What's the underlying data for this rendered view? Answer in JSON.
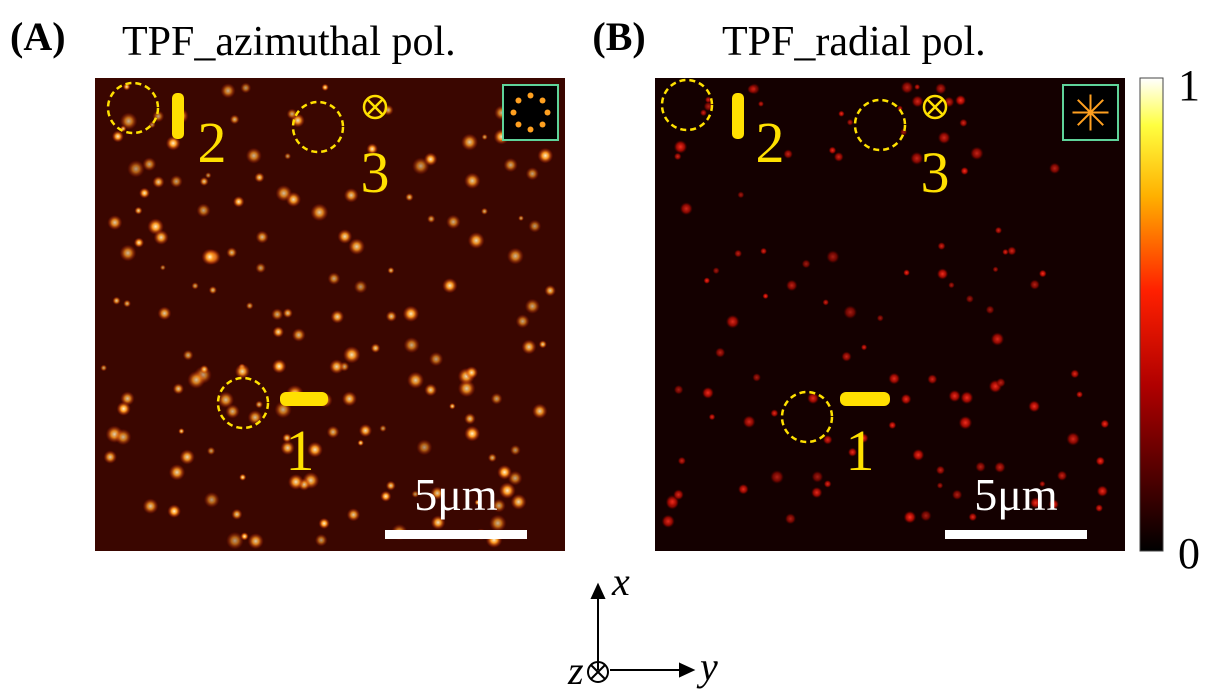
{
  "panels": [
    {
      "label": "(A)",
      "title": "TPF_azimuthal pol.",
      "markers": [
        "1",
        "2",
        "3"
      ],
      "scale_bar": "5μm"
    },
    {
      "label": "(B)",
      "title": "TPF_radial pol.",
      "markers": [
        "1",
        "2",
        "3"
      ],
      "scale_bar": "5μm"
    }
  ],
  "colorbar": {
    "min": 0,
    "max": 1
  },
  "axes": {
    "x": "x",
    "y": "y",
    "z": "z"
  }
}
